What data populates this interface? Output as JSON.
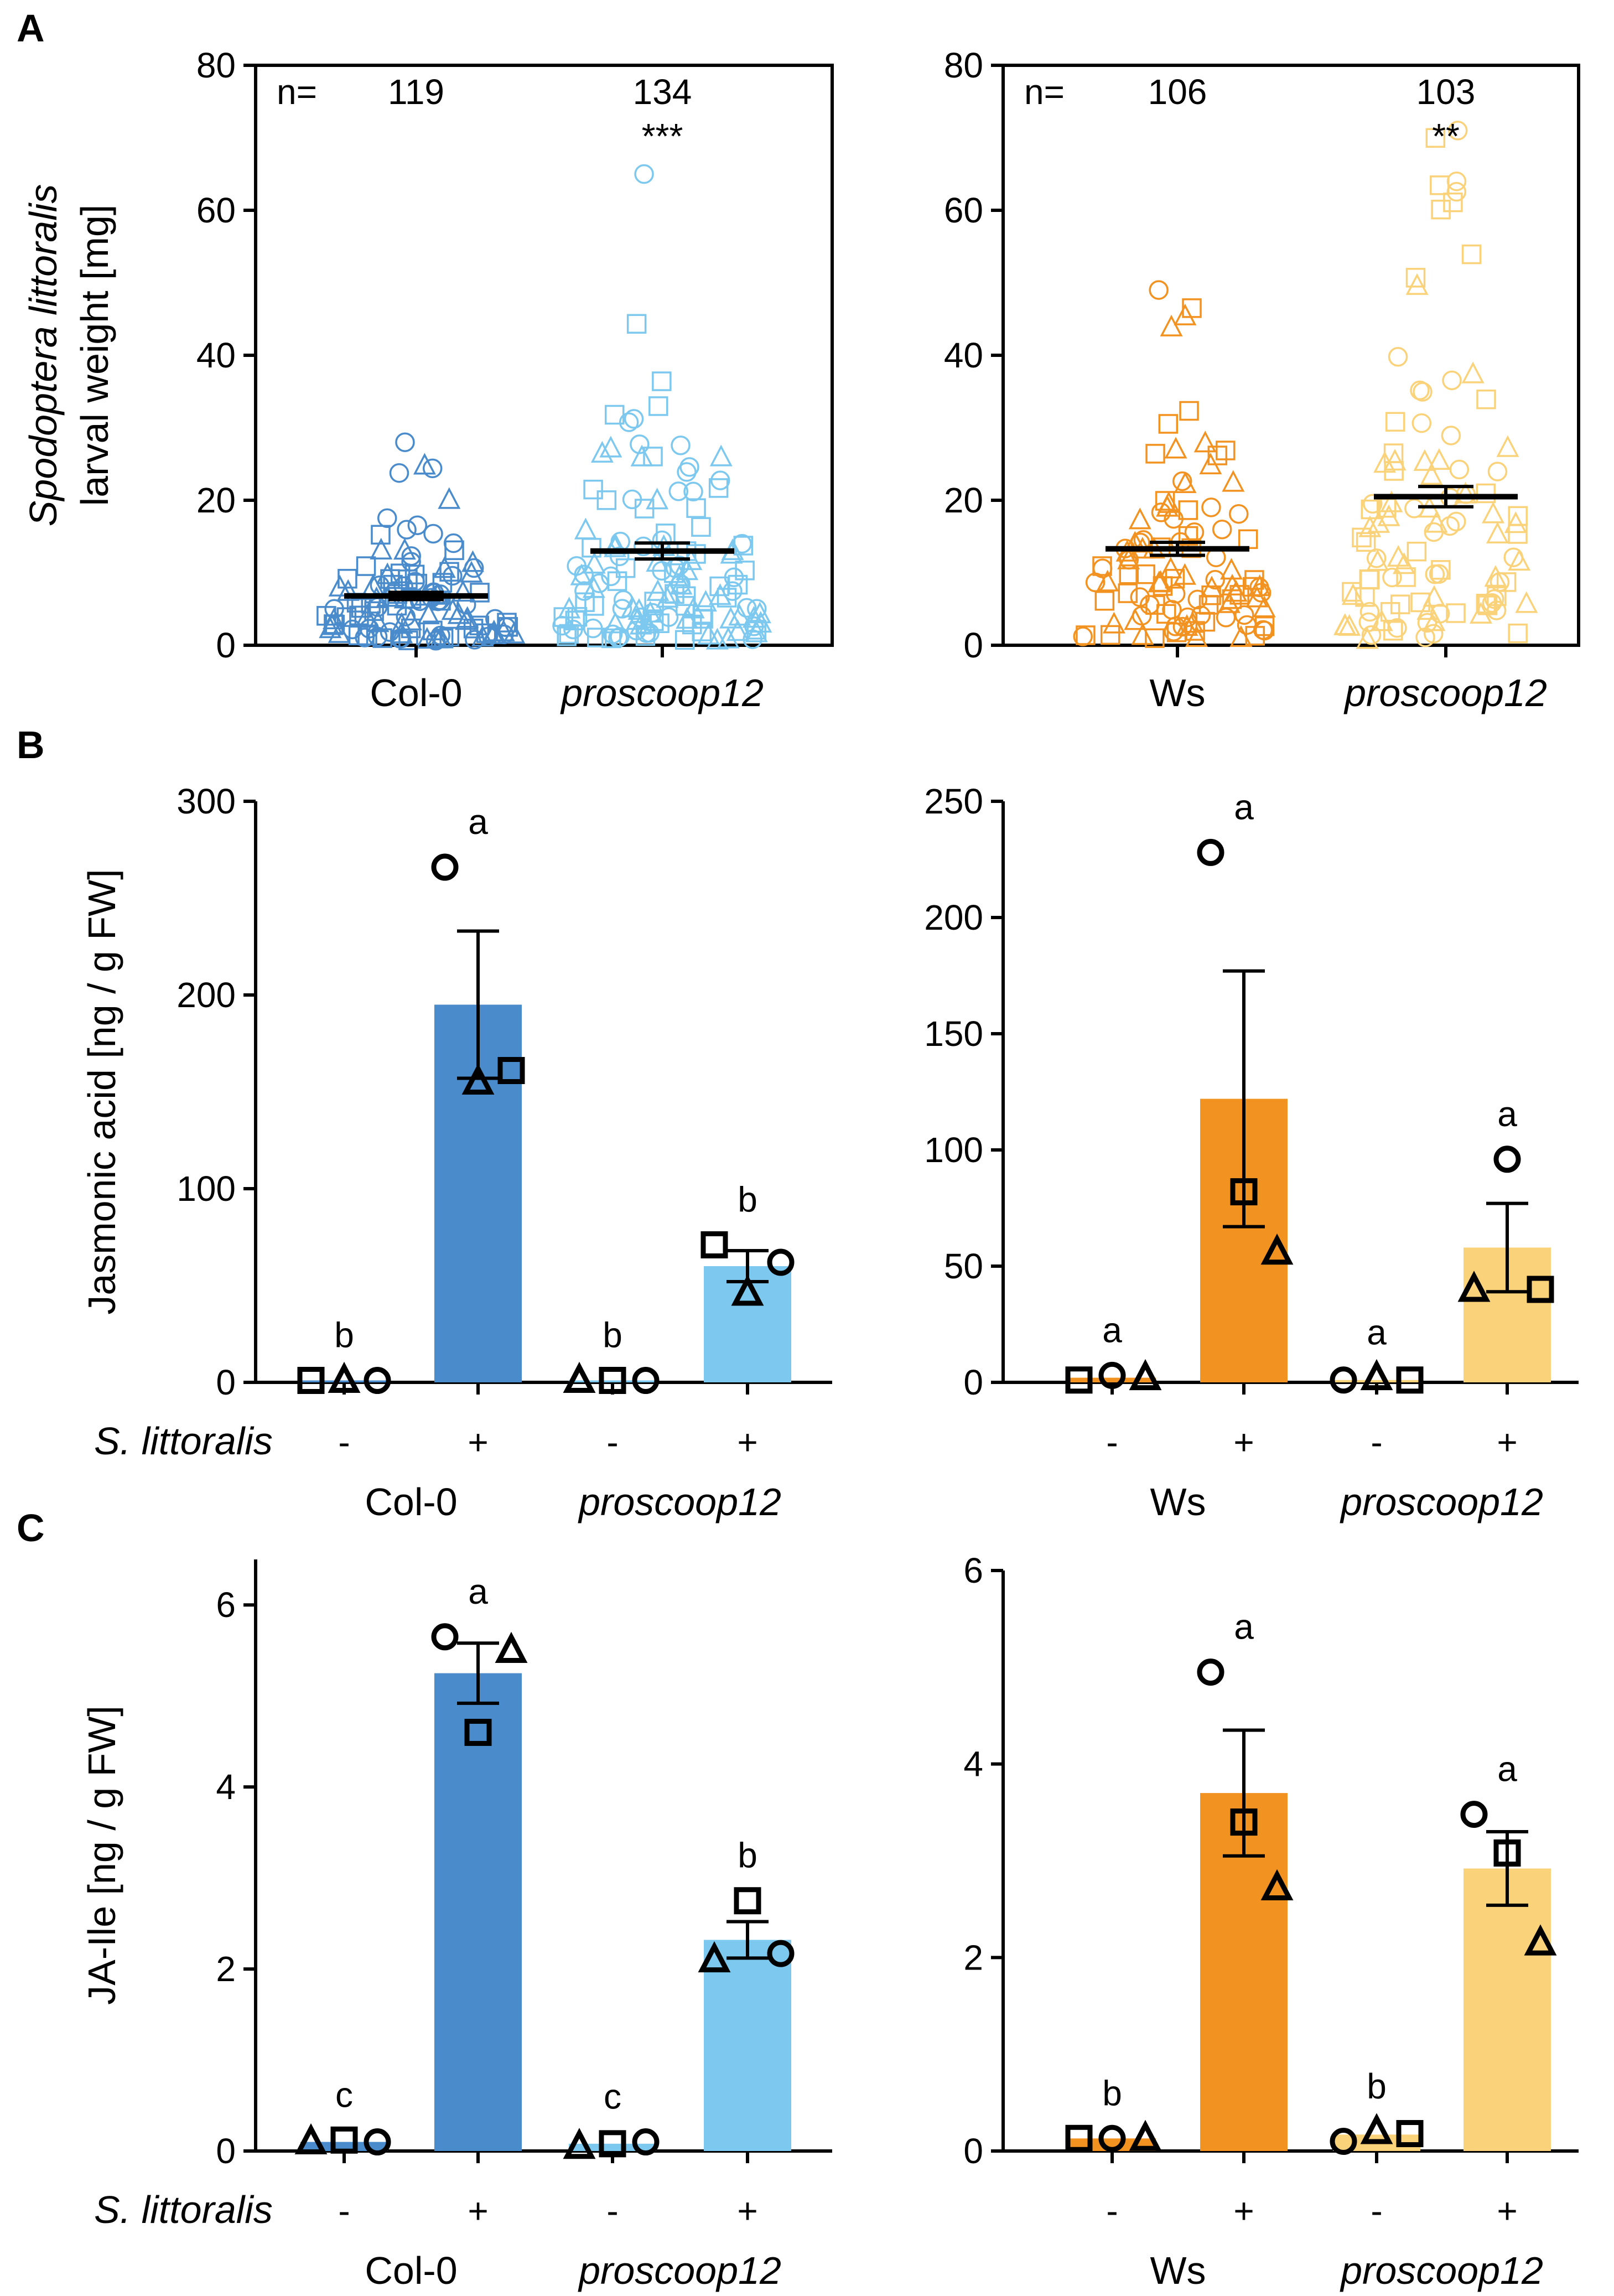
{
  "panel_labels": [
    "A",
    "B",
    "C"
  ],
  "colors": {
    "col0": "#4a8bcc",
    "col0_mut": "#7cc8ef",
    "ws": "#f29221",
    "ws_mut": "#fad27a"
  },
  "treatment_label": "S. littoralis",
  "treatment_signs": [
    "-",
    "+",
    "-",
    "+"
  ],
  "chart_data": [
    {
      "id": "A-left",
      "type": "scatter",
      "panel": "A",
      "ylabel_line1": "Spodoptera littoralis",
      "ylabel_line2": "larval weight [mg]",
      "ylim": [
        0,
        80
      ],
      "yticks": [
        "0",
        "20",
        "40",
        "60",
        "80"
      ],
      "n_label": "n=",
      "groups": [
        {
          "name": "Col-0",
          "italic": false,
          "n": "119",
          "sig": "",
          "mean": 6.8,
          "sem": 0.5,
          "max": 28,
          "color": "col0"
        },
        {
          "name": "proscoop12",
          "italic": true,
          "n": "134",
          "sig": "***",
          "mean": 13.0,
          "sem": 1.1,
          "max": 65,
          "color": "col0_mut"
        }
      ]
    },
    {
      "id": "A-right",
      "type": "scatter",
      "panel": "A",
      "ylim": [
        0,
        80
      ],
      "yticks": [
        "0",
        "20",
        "40",
        "60",
        "80"
      ],
      "n_label": "n=",
      "groups": [
        {
          "name": "Ws",
          "italic": false,
          "n": "106",
          "sig": "",
          "mean": 13.3,
          "sem": 0.9,
          "max": 49,
          "color": "ws"
        },
        {
          "name": "proscoop12",
          "italic": true,
          "n": "103",
          "sig": "**",
          "mean": 20.5,
          "sem": 1.4,
          "max": 71,
          "color": "ws_mut"
        }
      ]
    },
    {
      "id": "B-left",
      "type": "bar",
      "panel": "B",
      "ylabel": "Jasmonic acid [ng / g FW]",
      "ylim": [
        0,
        300
      ],
      "yticks": [
        "0",
        "100",
        "200",
        "300"
      ],
      "group_labels": [
        "Col-0",
        "proscoop12"
      ],
      "bars": [
        {
          "value": 1,
          "sem": 0,
          "letter": "b",
          "color": "col0",
          "points": [
            {
              "shape": "square",
              "y": 1
            },
            {
              "shape": "triangle",
              "y": 1
            },
            {
              "shape": "circle",
              "y": 1
            }
          ]
        },
        {
          "value": 195,
          "sem": 38,
          "letter": "a",
          "color": "col0",
          "points": [
            {
              "shape": "circle",
              "y": 266
            },
            {
              "shape": "triangle",
              "y": 155
            },
            {
              "shape": "square",
              "y": 161
            }
          ]
        },
        {
          "value": 1,
          "sem": 0,
          "letter": "b",
          "color": "col0_mut",
          "points": [
            {
              "shape": "triangle",
              "y": 1
            },
            {
              "shape": "square",
              "y": 1
            },
            {
              "shape": "circle",
              "y": 1
            }
          ]
        },
        {
          "value": 60,
          "sem": 8,
          "letter": "b",
          "color": "col0_mut",
          "points": [
            {
              "shape": "square",
              "y": 71
            },
            {
              "shape": "triangle",
              "y": 46
            },
            {
              "shape": "circle",
              "y": 62
            }
          ]
        }
      ]
    },
    {
      "id": "B-right",
      "type": "bar",
      "panel": "B",
      "ylim": [
        0,
        250
      ],
      "yticks": [
        "0",
        "50",
        "100",
        "150",
        "200",
        "250"
      ],
      "group_labels": [
        "Ws",
        "proscoop12"
      ],
      "bars": [
        {
          "value": 2,
          "sem": 0,
          "letter": "a",
          "color": "ws",
          "points": [
            {
              "shape": "square",
              "y": 1
            },
            {
              "shape": "circle",
              "y": 3
            },
            {
              "shape": "triangle",
              "y": 2
            }
          ]
        },
        {
          "value": 122,
          "sem": 55,
          "letter": "a",
          "color": "ws",
          "points": [
            {
              "shape": "circle",
              "y": 228
            },
            {
              "shape": "square",
              "y": 82
            },
            {
              "shape": "triangle",
              "y": 56
            }
          ]
        },
        {
          "value": 1,
          "sem": 0,
          "letter": "a",
          "color": "ws_mut",
          "points": [
            {
              "shape": "circle",
              "y": 1
            },
            {
              "shape": "triangle",
              "y": 2
            },
            {
              "shape": "square",
              "y": 1
            }
          ]
        },
        {
          "value": 58,
          "sem": 19,
          "letter": "a",
          "color": "ws_mut",
          "points": [
            {
              "shape": "triangle",
              "y": 40
            },
            {
              "shape": "circle",
              "y": 96
            },
            {
              "shape": "square",
              "y": 40
            }
          ]
        }
      ]
    },
    {
      "id": "C-left",
      "type": "bar",
      "panel": "C",
      "ylabel": "JA-Ile [ng / g FW]",
      "ylim": [
        0,
        6.5
      ],
      "yticks": [
        "0",
        "2",
        "4",
        "6"
      ],
      "group_labels": [
        "Col-0",
        "proscoop12"
      ],
      "bars": [
        {
          "value": 0.1,
          "sem": 0,
          "letter": "c",
          "color": "col0",
          "points": [
            {
              "shape": "triangle",
              "y": 0.1
            },
            {
              "shape": "square",
              "y": 0.12
            },
            {
              "shape": "circle",
              "y": 0.1
            }
          ]
        },
        {
          "value": 5.25,
          "sem": 0.33,
          "letter": "a",
          "color": "col0",
          "points": [
            {
              "shape": "circle",
              "y": 5.65
            },
            {
              "shape": "square",
              "y": 4.6
            },
            {
              "shape": "triangle",
              "y": 5.5
            }
          ]
        },
        {
          "value": 0.08,
          "sem": 0,
          "letter": "c",
          "color": "col0_mut",
          "points": [
            {
              "shape": "triangle",
              "y": 0.05
            },
            {
              "shape": "square",
              "y": 0.08
            },
            {
              "shape": "circle",
              "y": 0.1
            }
          ]
        },
        {
          "value": 2.32,
          "sem": 0.2,
          "letter": "b",
          "color": "col0_mut",
          "points": [
            {
              "shape": "triangle",
              "y": 2.1
            },
            {
              "shape": "square",
              "y": 2.75
            },
            {
              "shape": "circle",
              "y": 2.17
            }
          ]
        }
      ]
    },
    {
      "id": "C-right",
      "type": "bar",
      "panel": "C",
      "ylim": [
        0,
        6
      ],
      "yticks": [
        "0",
        "2",
        "4",
        "6"
      ],
      "group_labels": [
        "Ws",
        "proscoop12"
      ],
      "bars": [
        {
          "value": 0.13,
          "sem": 0,
          "letter": "b",
          "color": "ws",
          "points": [
            {
              "shape": "square",
              "y": 0.13
            },
            {
              "shape": "circle",
              "y": 0.13
            },
            {
              "shape": "triangle",
              "y": 0.13
            }
          ]
        },
        {
          "value": 3.7,
          "sem": 0.65,
          "letter": "a",
          "color": "ws",
          "points": [
            {
              "shape": "circle",
              "y": 4.95
            },
            {
              "shape": "square",
              "y": 3.4
            },
            {
              "shape": "triangle",
              "y": 2.72
            }
          ]
        },
        {
          "value": 0.17,
          "sem": 0,
          "letter": "b",
          "color": "ws_mut",
          "points": [
            {
              "shape": "circle",
              "y": 0.1
            },
            {
              "shape": "triangle",
              "y": 0.2
            },
            {
              "shape": "square",
              "y": 0.18
            }
          ]
        },
        {
          "value": 2.92,
          "sem": 0.38,
          "letter": "a",
          "color": "ws_mut",
          "points": [
            {
              "shape": "circle",
              "y": 3.48
            },
            {
              "shape": "square",
              "y": 3.08
            },
            {
              "shape": "triangle",
              "y": 2.15
            }
          ]
        }
      ]
    }
  ]
}
